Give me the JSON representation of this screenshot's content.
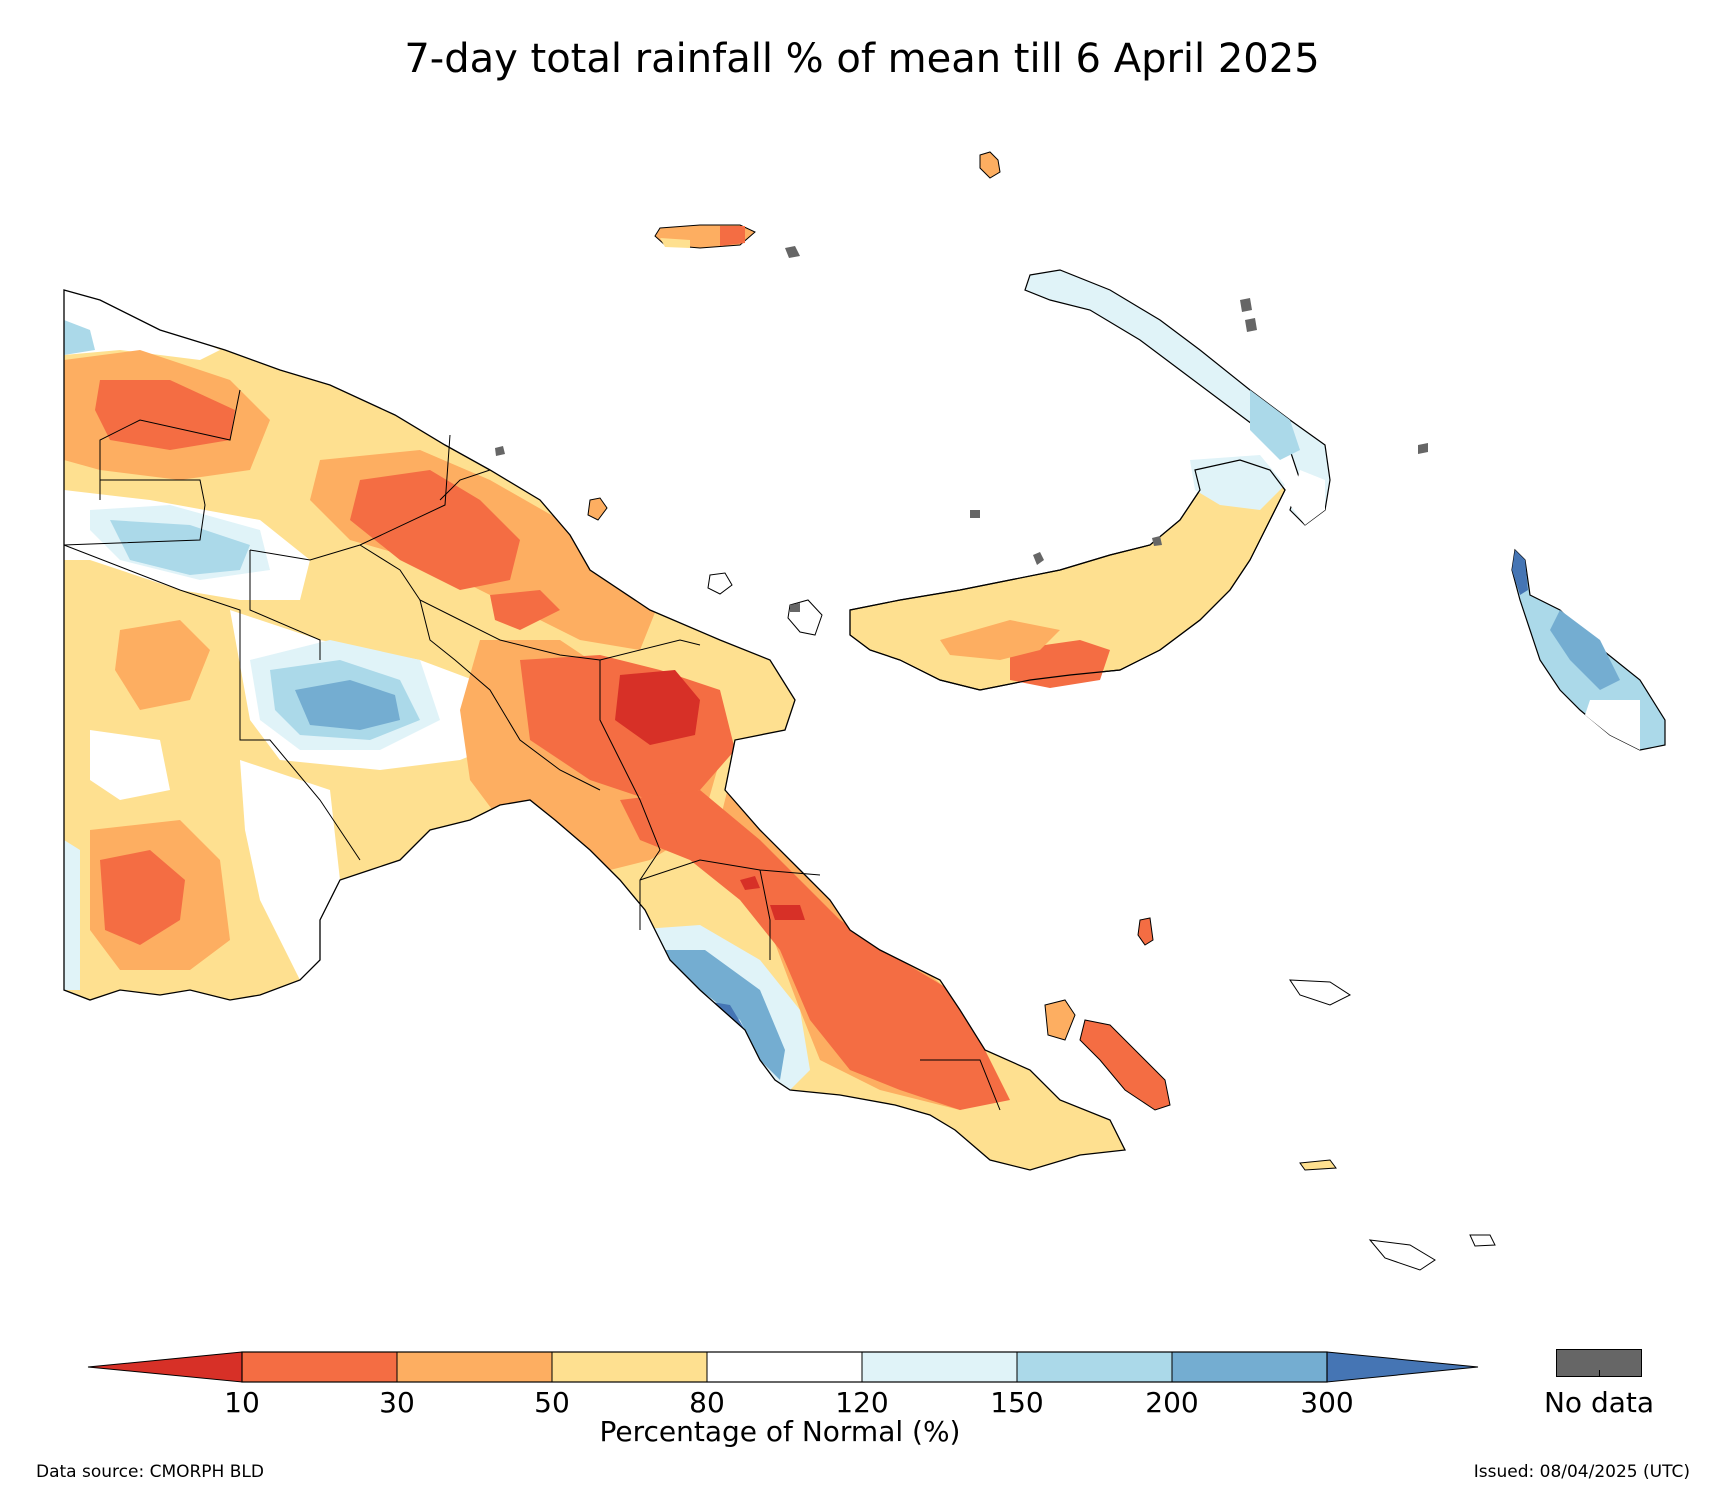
{
  "title": "7-day total rainfall % of mean till 6 April 2025",
  "legend": {
    "title": "Percentage of Normal (%)",
    "ticks": [
      "10",
      "30",
      "50",
      "80",
      "120",
      "150",
      "200",
      "300"
    ],
    "classes": [
      {
        "range": "<10",
        "color": "#d73027"
      },
      {
        "range": "10-30",
        "color": "#f46d43"
      },
      {
        "range": "30-50",
        "color": "#fdae61"
      },
      {
        "range": "50-80",
        "color": "#fee090"
      },
      {
        "range": "80-120",
        "color": "#ffffff"
      },
      {
        "range": "120-150",
        "color": "#e0f3f8"
      },
      {
        "range": "150-200",
        "color": "#abd9e9"
      },
      {
        "range": "200-300",
        "color": "#74add1"
      },
      {
        "range": ">300",
        "color": "#4575b4"
      }
    ],
    "no_data_label": "No data",
    "no_data_color": "#666666"
  },
  "footer": {
    "source": "Data source: CMORPH BLD",
    "issued": "Issued: 08/04/2025 (UTC)"
  }
}
